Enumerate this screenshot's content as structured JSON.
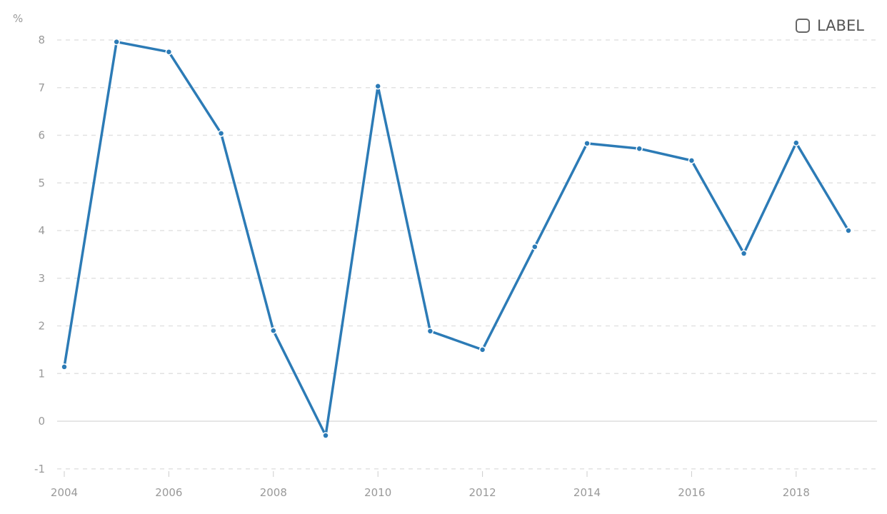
{
  "chart_data": {
    "type": "line",
    "ylabel": "%",
    "x": [
      2004,
      2005,
      2006,
      2007,
      2008,
      2009,
      2010,
      2011,
      2012,
      2013,
      2014,
      2015,
      2016,
      2017,
      2018,
      2019
    ],
    "series": [
      {
        "name": "LABEL",
        "color": "#2c7bb6",
        "values": [
          1.14,
          7.96,
          7.75,
          6.04,
          1.9,
          -0.3,
          7.03,
          1.89,
          1.5,
          3.66,
          5.83,
          5.72,
          5.47,
          3.52,
          5.84,
          4.0
        ]
      }
    ],
    "xticks": [
      2004,
      2006,
      2008,
      2010,
      2012,
      2014,
      2016,
      2018
    ],
    "yticks": [
      -1,
      0,
      1,
      2,
      3,
      4,
      5,
      6,
      7,
      8
    ],
    "ylim": [
      -1,
      8
    ],
    "xlim": [
      2004,
      2019
    ],
    "grid": true,
    "legend_position": "top-right"
  },
  "legend": {
    "label": "LABEL",
    "checked": false
  }
}
